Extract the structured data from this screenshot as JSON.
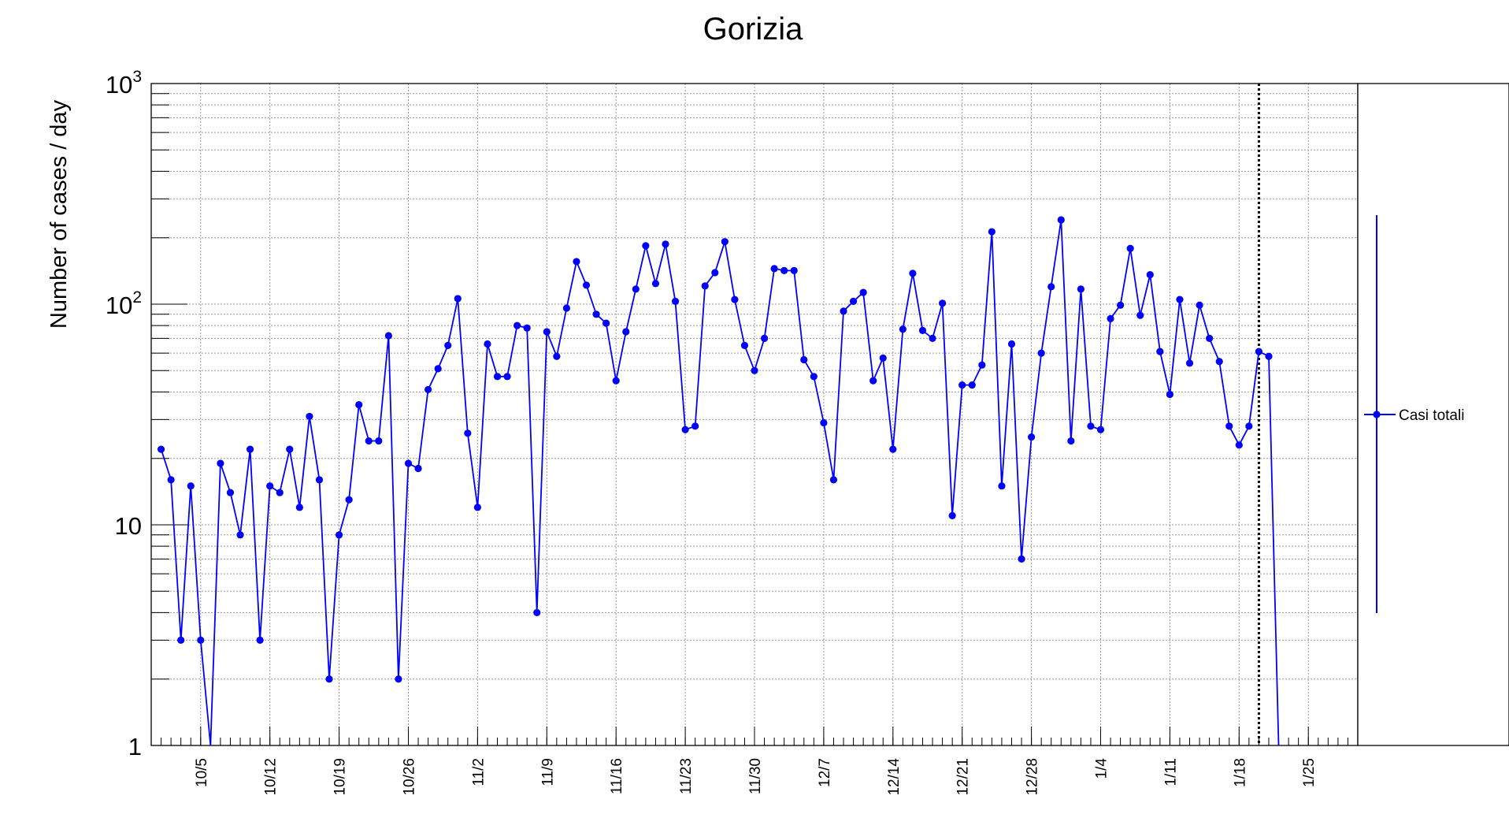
{
  "chart_data": {
    "type": "line",
    "title": "Gorizia",
    "xlabel": "",
    "ylabel": "Number of cases / day",
    "y_scale": "log",
    "ylim": [
      1,
      1000
    ],
    "xlim": [
      "2020-09-30",
      "2021-01-30"
    ],
    "grid": true,
    "legend_position": "right",
    "marker": "filled-circle",
    "colors": {
      "series": "#0000ff",
      "axes": "#000000",
      "grid": "#9a9a9a"
    },
    "y_tick_labels": [
      {
        "value": 1,
        "label": "1"
      },
      {
        "value": 10,
        "label": "10"
      },
      {
        "value": 100,
        "label": "10",
        "exponent": "2"
      },
      {
        "value": 1000,
        "label": "10",
        "exponent": "3"
      }
    ],
    "x_tick_labels": [
      {
        "date": "2020-10-05",
        "label": "10/5"
      },
      {
        "date": "2020-10-12",
        "label": "10/12"
      },
      {
        "date": "2020-10-19",
        "label": "10/19"
      },
      {
        "date": "2020-10-26",
        "label": "10/26"
      },
      {
        "date": "2020-11-02",
        "label": "11/2"
      },
      {
        "date": "2020-11-09",
        "label": "11/9"
      },
      {
        "date": "2020-11-16",
        "label": "11/16"
      },
      {
        "date": "2020-11-23",
        "label": "11/23"
      },
      {
        "date": "2020-11-30",
        "label": "11/30"
      },
      {
        "date": "2020-12-07",
        "label": "12/7"
      },
      {
        "date": "2020-12-14",
        "label": "12/14"
      },
      {
        "date": "2020-12-21",
        "label": "12/21"
      },
      {
        "date": "2020-12-28",
        "label": "12/28"
      },
      {
        "date": "2021-01-04",
        "label": "1/4"
      },
      {
        "date": "2021-01-11",
        "label": "1/11"
      },
      {
        "date": "2021-01-18",
        "label": "1/18"
      },
      {
        "date": "2021-01-25",
        "label": "1/25"
      }
    ],
    "vertical_marker_date": "2021-01-20",
    "series": [
      {
        "name": "Casi totali",
        "start_date": "2020-10-01",
        "values": [
          22,
          16,
          3,
          15,
          3,
          0,
          19,
          14,
          9,
          22,
          3,
          15,
          14,
          22,
          12,
          31,
          16,
          2,
          9,
          13,
          35,
          24,
          24,
          72,
          2,
          19,
          18,
          41,
          51,
          65,
          106,
          26,
          12,
          66,
          47,
          47,
          80,
          78,
          4,
          75,
          58,
          96,
          156,
          122,
          90,
          82,
          45,
          75,
          117,
          184,
          124,
          187,
          103,
          27,
          28,
          121,
          139,
          192,
          105,
          65,
          50,
          70,
          145,
          142,
          142,
          56,
          47,
          29,
          16,
          93,
          103,
          113,
          45,
          57,
          22,
          77,
          138,
          76,
          70,
          101,
          11,
          43,
          43,
          53,
          213,
          15,
          66,
          7,
          25,
          60,
          120,
          241,
          24,
          117,
          28,
          27,
          86,
          99,
          179,
          89,
          136,
          61,
          39,
          105,
          54,
          99,
          70,
          55,
          28,
          23,
          28,
          61,
          58,
          0
        ]
      }
    ]
  }
}
